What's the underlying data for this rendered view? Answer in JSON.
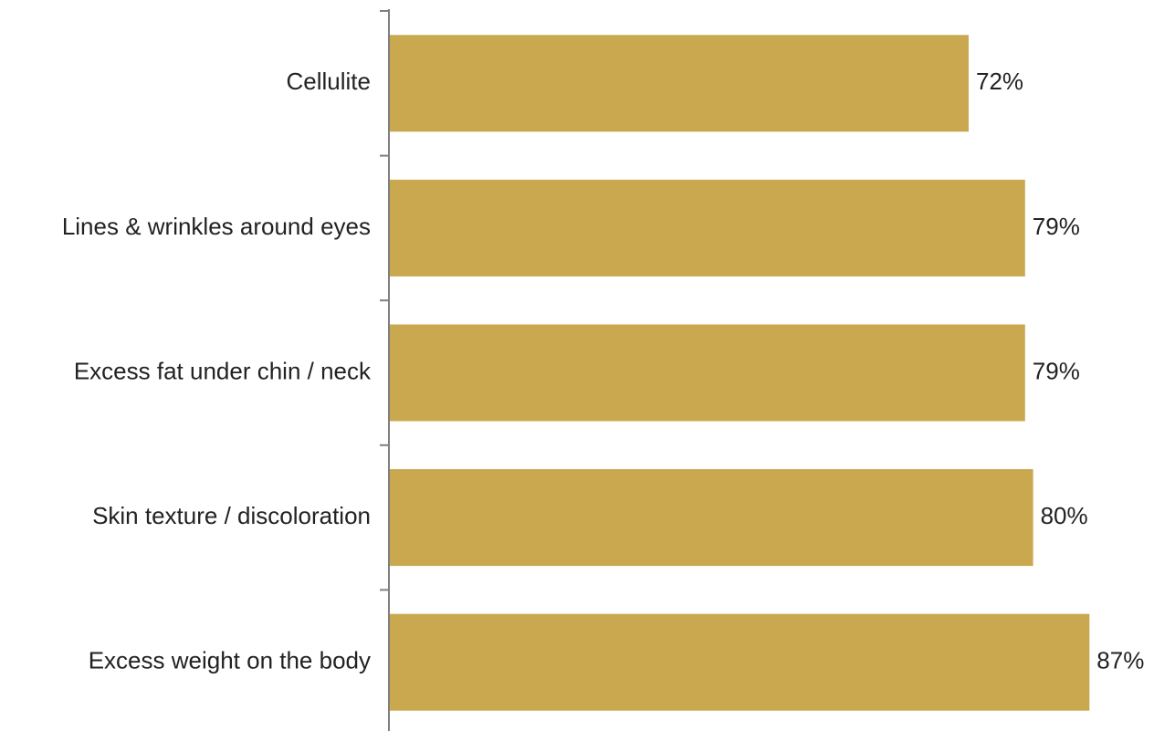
{
  "chart_data": {
    "type": "bar",
    "orientation": "horizontal",
    "categories": [
      "Cellulite",
      "Lines & wrinkles around eyes",
      "Excess fat under chin / neck",
      "Skin texture / discoloration",
      "Excess weight on the body"
    ],
    "values": [
      72,
      79,
      79,
      80,
      87
    ],
    "value_labels": [
      "72%",
      "79%",
      "79%",
      "80%",
      "87%"
    ],
    "unit": "%",
    "title": "",
    "xlabel": "",
    "ylabel": "",
    "xlim": [
      0,
      100
    ],
    "grid": false,
    "legend": "none"
  },
  "colors": {
    "bar": "#C9A84F",
    "axis": "#7f7f7f",
    "text": "#222222"
  }
}
